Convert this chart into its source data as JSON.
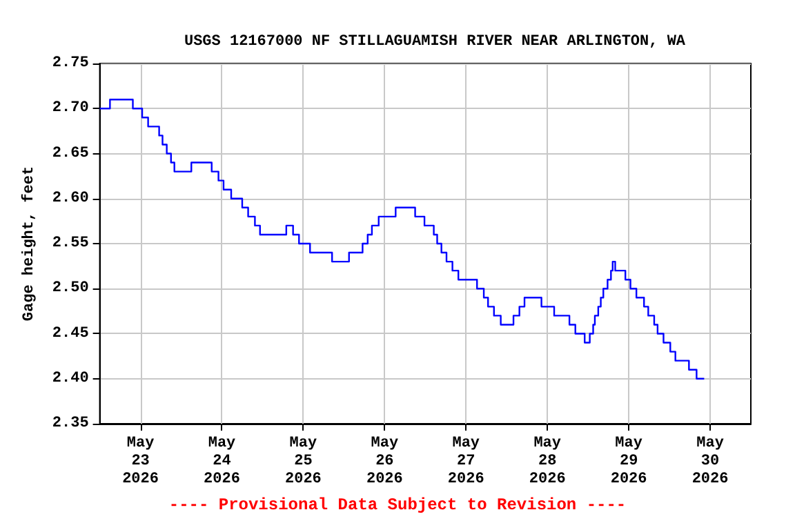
{
  "chart_data": {
    "type": "step",
    "title": "USGS 12167000 NF STILLAGUAMISH RIVER NEAR ARLINGTON, WA",
    "ylabel": "Gage height, feet",
    "annotations": [
      "---- Provisional Data Subject to Revision ----"
    ],
    "x": [
      "2026-05-22T12:00",
      "2026-05-22T15:00",
      "2026-05-22T21:45",
      "2026-05-23T00:30",
      "2026-05-23T02:15",
      "2026-05-23T05:30",
      "2026-05-23T06:30",
      "2026-05-23T07:45",
      "2026-05-23T09:00",
      "2026-05-23T10:00",
      "2026-05-23T15:00",
      "2026-05-23T21:00",
      "2026-05-23T23:00",
      "2026-05-24T00:30",
      "2026-05-24T02:45",
      "2026-05-24T06:00",
      "2026-05-24T07:45",
      "2026-05-24T09:45",
      "2026-05-24T11:15",
      "2026-05-24T19:00",
      "2026-05-24T21:00",
      "2026-05-24T22:45",
      "2026-05-25T02:00",
      "2026-05-25T08:30",
      "2026-05-25T13:30",
      "2026-05-25T17:30",
      "2026-05-25T19:00",
      "2026-05-25T20:15",
      "2026-05-25T22:15",
      "2026-05-26T03:15",
      "2026-05-26T09:00",
      "2026-05-26T11:45",
      "2026-05-26T14:30",
      "2026-05-26T15:30",
      "2026-05-26T16:45",
      "2026-05-26T18:15",
      "2026-05-26T20:00",
      "2026-05-26T21:45",
      "2026-05-27T03:15",
      "2026-05-27T05:15",
      "2026-05-27T06:30",
      "2026-05-27T08:15",
      "2026-05-27T10:15",
      "2026-05-27T14:00",
      "2026-05-27T15:45",
      "2026-05-27T17:15",
      "2026-05-27T22:15",
      "2026-05-28T02:00",
      "2026-05-28T06:30",
      "2026-05-28T08:15",
      "2026-05-28T11:00",
      "2026-05-28T12:30",
      "2026-05-28T13:30",
      "2026-05-28T14:00",
      "2026-05-28T15:00",
      "2026-05-28T15:45",
      "2026-05-28T16:30",
      "2026-05-28T17:45",
      "2026-05-28T18:45",
      "2026-05-28T19:15",
      "2026-05-28T20:00",
      "2026-05-28T23:00",
      "2026-05-29T00:30",
      "2026-05-29T02:15",
      "2026-05-29T04:30",
      "2026-05-29T05:45",
      "2026-05-29T07:30",
      "2026-05-29T08:30",
      "2026-05-29T10:15",
      "2026-05-29T12:15",
      "2026-05-29T13:45",
      "2026-05-29T17:45",
      "2026-05-29T20:00",
      "2026-05-29T22:15"
    ],
    "series": [
      {
        "color": "#0000ff",
        "values": [
          2.7,
          2.71,
          2.7,
          2.69,
          2.68,
          2.67,
          2.66,
          2.65,
          2.64,
          2.63,
          2.64,
          2.63,
          2.62,
          2.61,
          2.6,
          2.59,
          2.58,
          2.57,
          2.56,
          2.57,
          2.56,
          2.55,
          2.54,
          2.53,
          2.54,
          2.55,
          2.56,
          2.57,
          2.58,
          2.59,
          2.58,
          2.57,
          2.56,
          2.55,
          2.54,
          2.53,
          2.52,
          2.51,
          2.5,
          2.49,
          2.48,
          2.47,
          2.46,
          2.47,
          2.48,
          2.49,
          2.48,
          2.47,
          2.46,
          2.45,
          2.44,
          2.45,
          2.46,
          2.47,
          2.48,
          2.49,
          2.5,
          2.51,
          2.52,
          2.53,
          2.52,
          2.51,
          2.5,
          2.49,
          2.48,
          2.47,
          2.46,
          2.45,
          2.44,
          2.43,
          2.42,
          2.41,
          2.4,
          2.4
        ]
      }
    ],
    "xlim": [
      "2026-05-22T12:00",
      "2026-05-30T12:00"
    ],
    "xticks": [
      {
        "value": "2026-05-23",
        "label": "May\n23\n2026"
      },
      {
        "value": "2026-05-24",
        "label": "May\n24\n2026"
      },
      {
        "value": "2026-05-25",
        "label": "May\n25\n2026"
      },
      {
        "value": "2026-05-26",
        "label": "May\n26\n2026"
      },
      {
        "value": "2026-05-27",
        "label": "May\n27\n2026"
      },
      {
        "value": "2026-05-28",
        "label": "May\n28\n2026"
      },
      {
        "value": "2026-05-29",
        "label": "May\n29\n2026"
      },
      {
        "value": "2026-05-30",
        "label": "May\n30\n2026"
      }
    ],
    "ylim": [
      2.35,
      2.75
    ],
    "yticks": [
      {
        "value": 2.35,
        "label": "2.35"
      },
      {
        "value": 2.4,
        "label": "2.40"
      },
      {
        "value": 2.45,
        "label": "2.45"
      },
      {
        "value": 2.5,
        "label": "2.50"
      },
      {
        "value": 2.55,
        "label": "2.55"
      },
      {
        "value": 2.6,
        "label": "2.60"
      },
      {
        "value": 2.65,
        "label": "2.65"
      },
      {
        "value": 2.7,
        "label": "2.70"
      },
      {
        "value": 2.75,
        "label": "2.75"
      }
    ],
    "grid": true,
    "marker": "none",
    "line_style": "solid"
  }
}
